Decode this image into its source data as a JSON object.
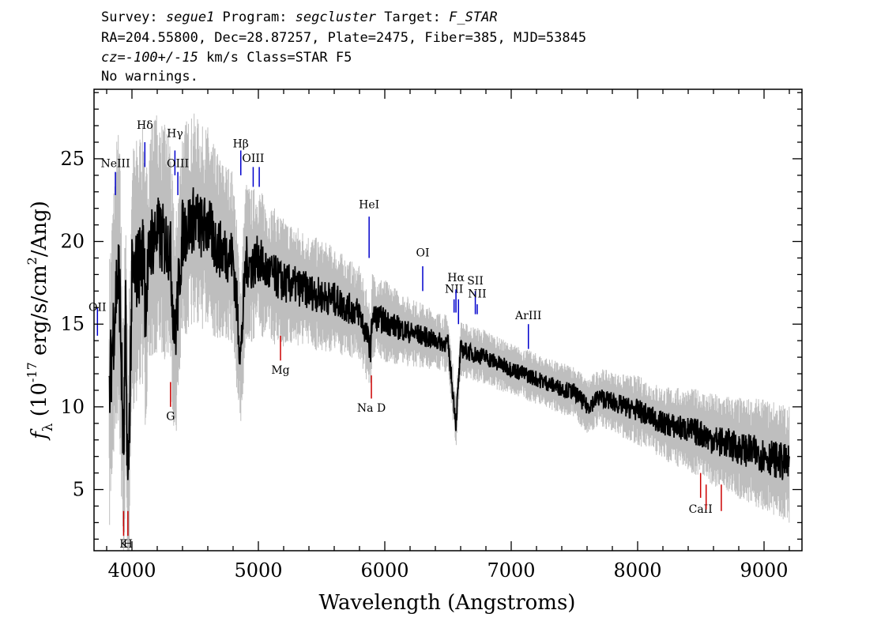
{
  "header": {
    "line1": {
      "survey_label": "Survey: ",
      "survey": "segue1",
      "program_label": " Program: ",
      "program": "segcluster",
      "target_label": " Target: ",
      "target": "F_STAR"
    },
    "line2": "RA=204.55800, Dec=28.87257, Plate=2475, Fiber=385, MJD=53845",
    "line3": {
      "cz_label": "cz=",
      "cz": "-100+/-15",
      "cz_units": " km/s Class=STAR F5"
    },
    "line4": "No warnings."
  },
  "chart_data": {
    "type": "line",
    "xlabel": "Wavelength (Angstroms)",
    "ylabel_prefix": "f",
    "ylabel_sub": "λ",
    "ylabel_rest": " (10",
    "ylabel_exp": "-17",
    "ylabel_units": " erg/s/cm",
    "ylabel_exp2": "2",
    "ylabel_tail": "/Ang)",
    "xlim": [
      3700,
      9300
    ],
    "ylim": [
      1.3,
      29.2
    ],
    "xticks": [
      4000,
      5000,
      6000,
      7000,
      8000,
      9000
    ],
    "yticks": [
      5,
      10,
      15,
      20,
      25
    ],
    "grid": false,
    "series": [
      {
        "role": "spectrum",
        "color": "#000000",
        "x": [
          3820,
          3850,
          3880,
          3900,
          3934,
          3950,
          3968,
          4000,
          4050,
          4100,
          4102,
          4150,
          4200,
          4250,
          4300,
          4340,
          4400,
          4450,
          4500,
          4550,
          4600,
          4650,
          4700,
          4750,
          4800,
          4861,
          4900,
          4950,
          5000,
          5050,
          5100,
          5150,
          5200,
          5300,
          5400,
          5500,
          5600,
          5700,
          5800,
          5890,
          5900,
          6000,
          6100,
          6200,
          6300,
          6400,
          6500,
          6563,
          6600,
          6700,
          6800,
          6900,
          7000,
          7100,
          7200,
          7300,
          7400,
          7500,
          7600,
          7700,
          7800,
          7900,
          8000,
          8100,
          8200,
          8300,
          8400,
          8500,
          8600,
          8700,
          8800,
          8900,
          9000,
          9100,
          9200
        ],
        "y": [
          10.5,
          14.5,
          17.5,
          18.0,
          6.8,
          15.0,
          4.5,
          17.5,
          18.5,
          19.5,
          16.0,
          20.0,
          20.5,
          20.0,
          19.8,
          14.0,
          20.5,
          21.0,
          21.5,
          20.8,
          21.0,
          20.0,
          19.5,
          19.3,
          19.0,
          13.0,
          18.8,
          18.5,
          19.0,
          18.3,
          18.0,
          17.8,
          17.5,
          17.3,
          17.0,
          16.7,
          16.5,
          16.0,
          15.7,
          13.5,
          15.5,
          15.2,
          14.8,
          14.5,
          14.3,
          14.0,
          13.8,
          9.0,
          13.5,
          13.2,
          13.0,
          12.6,
          12.3,
          12.0,
          11.7,
          11.4,
          11.1,
          10.9,
          10.0,
          10.6,
          10.3,
          10.0,
          9.8,
          9.4,
          9.0,
          8.8,
          8.6,
          8.4,
          8.0,
          7.8,
          7.5,
          7.3,
          7.1,
          6.8,
          6.5
        ]
      },
      {
        "role": "error-band",
        "color": "#bebebe",
        "x": [
          3820,
          3900,
          4000,
          4100,
          4200,
          4300,
          4400,
          4500,
          4600,
          4700,
          4800,
          4900,
          5000,
          5200,
          5400,
          5600,
          5800,
          6000,
          6200,
          6400,
          6600,
          6800,
          7000,
          7200,
          7400,
          7600,
          7800,
          8000,
          8200,
          8400,
          8600,
          8800,
          9000,
          9200
        ],
        "half_width": [
          6.0,
          6.5,
          6.0,
          5.5,
          5.2,
          5.0,
          4.8,
          4.5,
          4.3,
          4.0,
          3.8,
          3.5,
          3.2,
          2.8,
          2.5,
          2.3,
          2.0,
          1.8,
          1.5,
          1.3,
          1.2,
          1.2,
          1.1,
          1.1,
          1.1,
          1.2,
          1.3,
          1.5,
          1.6,
          1.8,
          2.0,
          2.2,
          2.4,
          2.6
        ]
      }
    ],
    "emission_lines": [
      {
        "label": "OII",
        "x": 3727,
        "top": 16.0,
        "bottom": 14.3,
        "label_y": 15.8
      },
      {
        "label": "NeIII",
        "x": 3869,
        "top": 24.2,
        "bottom": 22.8,
        "label_y": 24.5
      },
      {
        "label": "Hδ",
        "x": 4102,
        "top": 26.0,
        "bottom": 24.5,
        "label_y": 26.8
      },
      {
        "label": "Hγ",
        "x": 4340,
        "top": 25.5,
        "bottom": 24.0,
        "label_y": 26.3
      },
      {
        "label": "OIII",
        "x": 4363,
        "top": 24.2,
        "bottom": 22.8,
        "label_y": 24.5
      },
      {
        "label": "Hβ",
        "x": 4861,
        "top": 25.5,
        "bottom": 24.0,
        "label_y": 25.7
      },
      {
        "label": "OIII",
        "x": 4959,
        "top": 24.5,
        "bottom": 23.3,
        "label_y": 24.8
      },
      {
        "label": "",
        "x": 5007,
        "top": 24.5,
        "bottom": 23.3,
        "label_y": 24.8
      },
      {
        "label": "HeI",
        "x": 5876,
        "top": 21.5,
        "bottom": 19.0,
        "label_y": 22.0
      },
      {
        "label": "OI",
        "x": 6300,
        "top": 18.5,
        "bottom": 17.0,
        "label_y": 19.1
      },
      {
        "label": "NII",
        "x": 6548,
        "top": 16.5,
        "bottom": 15.7,
        "label_y": 16.9
      },
      {
        "label": "Hα",
        "x": 6563,
        "top": 17.1,
        "bottom": 15.7,
        "label_y": 17.6
      },
      {
        "label": "",
        "x": 6583,
        "top": 16.5,
        "bottom": 15.0,
        "label_y": 16.9
      },
      {
        "label": "SII",
        "x": 6716,
        "top": 17.0,
        "bottom": 15.6,
        "label_y": 17.4
      },
      {
        "label": "NII",
        "x": 6731,
        "top": 16.2,
        "bottom": 15.6,
        "label_y": 16.6
      },
      {
        "label": "ArIII",
        "x": 7136,
        "top": 15.0,
        "bottom": 13.5,
        "label_y": 15.3
      }
    ],
    "absorption_lines": [
      {
        "label": "K",
        "x": 3934,
        "top": 3.7,
        "bottom": 2.2,
        "label_y": 1.5
      },
      {
        "label": "H",
        "x": 3968,
        "top": 3.7,
        "bottom": 2.2,
        "label_y": 1.5
      },
      {
        "label": "G",
        "x": 4305,
        "top": 11.5,
        "bottom": 10.0,
        "label_y": 9.2
      },
      {
        "label": "Mg",
        "x": 5175,
        "top": 14.3,
        "bottom": 12.8,
        "label_y": 12.0
      },
      {
        "label": "Na D",
        "x": 5894,
        "top": 11.9,
        "bottom": 10.5,
        "label_y": 9.7
      },
      {
        "label": "CaII",
        "x": 8498,
        "top": 6.0,
        "bottom": 4.5,
        "label_y": 3.6
      },
      {
        "label": "",
        "x": 8542,
        "top": 5.3,
        "bottom": 3.8,
        "label_y": 3.6
      },
      {
        "label": "",
        "x": 8662,
        "top": 5.3,
        "bottom": 3.7,
        "label_y": 3.6
      }
    ],
    "colors": {
      "emission": "#0000cc",
      "absorption": "#cc0000",
      "error": "#bebebe",
      "spectrum": "#000000"
    }
  }
}
